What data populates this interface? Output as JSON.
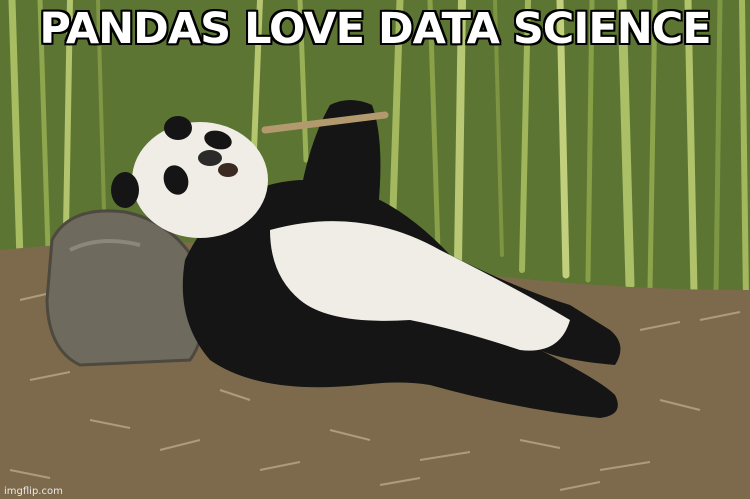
{
  "meme": {
    "caption": "PANDAS LOVE DATA SCIENCE",
    "watermark": "imgflip.com"
  },
  "colors": {
    "bamboo_bg": "#6e8a3c",
    "bamboo_stalk": "#9bb35a",
    "ground": "#7d6a4c",
    "fur_white": "#f0ede6",
    "fur_black": "#151515",
    "rock": "#6f6a5e",
    "caption_text": "#ffffff",
    "caption_outline": "#000000"
  },
  "icons": [
    "panda-figure",
    "rock-shape",
    "bamboo-stalks",
    "leaf-litter",
    "bamboo-stick"
  ]
}
